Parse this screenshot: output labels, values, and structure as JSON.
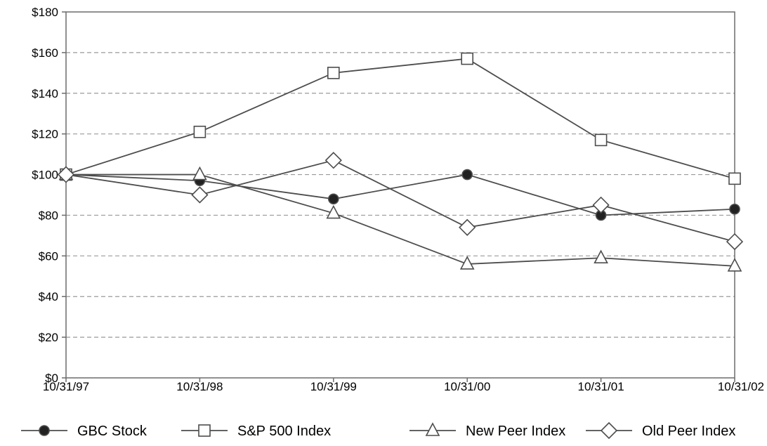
{
  "chart_data": {
    "type": "line",
    "title": "",
    "xlabel": "",
    "ylabel": "",
    "categories": [
      "10/31/97",
      "10/31/98",
      "10/31/99",
      "10/31/00",
      "10/31/01",
      "10/31/02"
    ],
    "ylim": [
      0,
      180
    ],
    "yticks": [
      0,
      20,
      40,
      60,
      80,
      100,
      120,
      140,
      160,
      180
    ],
    "ytick_labels": [
      "$0",
      "$20",
      "$40",
      "$60",
      "$80",
      "$100",
      "$120",
      "$140",
      "$160",
      "$180"
    ],
    "grid": "horizontal dashed",
    "legend_position": "bottom",
    "series": [
      {
        "name": "GBC Stock",
        "marker": "filled-circle",
        "values": [
          100,
          97,
          88,
          100,
          80,
          83
        ]
      },
      {
        "name": "S&P 500 Index",
        "marker": "open-square",
        "values": [
          100,
          121,
          150,
          157,
          117,
          98
        ]
      },
      {
        "name": "New Peer Index",
        "marker": "open-triangle",
        "values": [
          100,
          100,
          81,
          56,
          59,
          55
        ]
      },
      {
        "name": "Old Peer Index",
        "marker": "open-diamond",
        "values": [
          100,
          90,
          107,
          74,
          85,
          67
        ]
      }
    ],
    "colors": {
      "line": "#4d4d4d",
      "marker_stroke": "#4d4d4d",
      "grid": "#9a9a9a",
      "axis": "#6b6b6b"
    }
  }
}
